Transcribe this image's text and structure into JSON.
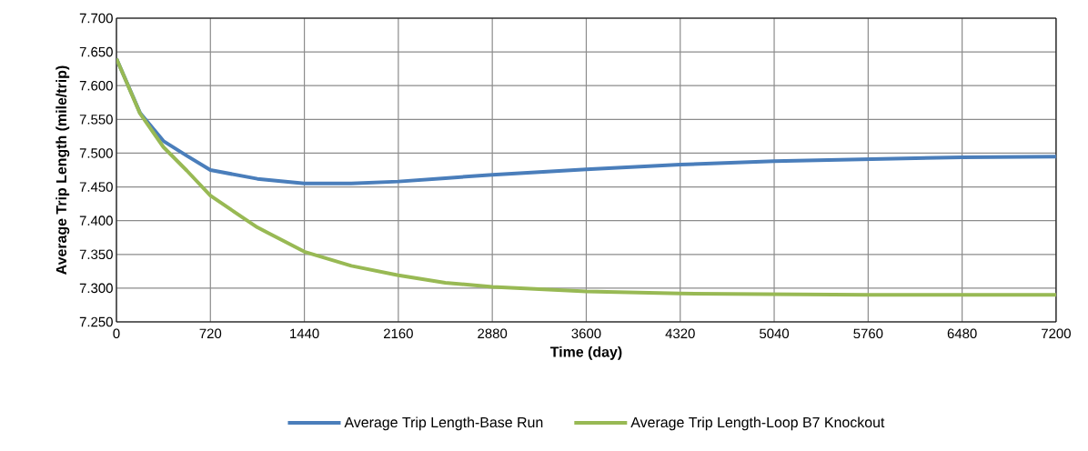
{
  "chart_data": {
    "type": "line",
    "xlabel": "Time (day)",
    "ylabel": "Average Trip Length (mile/trip)",
    "x": [
      0,
      180,
      360,
      540,
      720,
      1080,
      1440,
      1800,
      2160,
      2520,
      2880,
      3600,
      4320,
      5040,
      5760,
      6480,
      7200
    ],
    "series": [
      {
        "name": "Average Trip Length-Base Run",
        "color": "#4a7ebb",
        "values": [
          7.64,
          7.56,
          7.518,
          7.496,
          7.475,
          7.462,
          7.455,
          7.455,
          7.458,
          7.463,
          7.468,
          7.476,
          7.483,
          7.488,
          7.491,
          7.494,
          7.495
        ]
      },
      {
        "name": "Average Trip Length-Loop B7 Knockout",
        "color": "#98b954",
        "values": [
          7.64,
          7.559,
          7.509,
          7.474,
          7.437,
          7.39,
          7.354,
          7.333,
          7.319,
          7.308,
          7.302,
          7.295,
          7.292,
          7.291,
          7.29,
          7.29,
          7.29
        ]
      }
    ],
    "xlim": [
      0,
      7200
    ],
    "xticks": [
      0,
      720,
      1440,
      2160,
      2880,
      3600,
      4320,
      5040,
      5760,
      6480,
      7200
    ],
    "ylim": [
      7.25,
      7.7
    ],
    "yticks": [
      {
        "value": 7.25,
        "label": "7.250"
      },
      {
        "value": 7.3,
        "label": "7.300"
      },
      {
        "value": 7.35,
        "label": "7.350"
      },
      {
        "value": 7.4,
        "label": "7.400"
      },
      {
        "value": 7.45,
        "label": "7.450"
      },
      {
        "value": 7.5,
        "label": "7.500"
      },
      {
        "value": 7.55,
        "label": "7.550"
      },
      {
        "value": 7.6,
        "label": "7.600"
      },
      {
        "value": 7.65,
        "label": "7.650"
      },
      {
        "value": 7.7,
        "label": "7.700"
      }
    ],
    "grid": true,
    "legend": "bottom",
    "marker": "none",
    "line_style": "solid"
  }
}
